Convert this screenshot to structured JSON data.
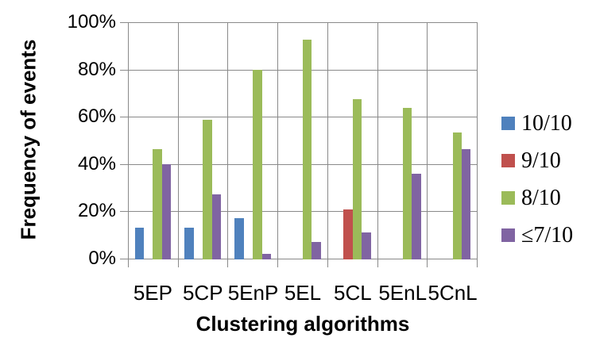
{
  "chart_data": {
    "type": "bar",
    "title": "",
    "xlabel": "Clustering algorithms",
    "ylabel": "Frequency of events",
    "categories": [
      "5EP",
      "5CP",
      "5EnP",
      "5EL",
      "5CL",
      "5EnL",
      "5CnL"
    ],
    "series": [
      {
        "name": "10/10",
        "color": "#4F81BD",
        "values": [
          13.5,
          13.5,
          17.5,
          0,
          0,
          0,
          0
        ]
      },
      {
        "name": "9/10",
        "color": "#C0504D",
        "values": [
          0,
          0,
          0,
          0,
          21,
          0,
          0
        ]
      },
      {
        "name": "8/10",
        "color": "#9BBB59",
        "values": [
          46.5,
          59,
          80,
          92.5,
          67.5,
          64,
          53.5
        ]
      },
      {
        "name": "≤7/10",
        "color": "#8064A2",
        "values": [
          40,
          27.5,
          2.5,
          7.5,
          11.5,
          36,
          46.5
        ]
      }
    ],
    "values_unit": "%",
    "ylim": [
      0,
      100
    ],
    "ytick_step": 20,
    "ytick_labels": [
      "0%",
      "20%",
      "40%",
      "60%",
      "80%",
      "100%"
    ],
    "grid": true,
    "legend_position": "right",
    "bar_gap_width_percent": 150,
    "axis_color": "#8A8A8A",
    "text_color": "#000000",
    "background": "#FFFFFF"
  }
}
